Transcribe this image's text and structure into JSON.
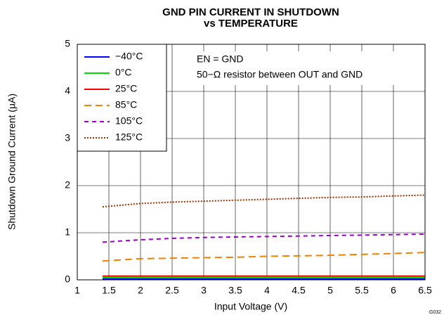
{
  "chart_data": {
    "type": "line",
    "title": "GND PIN CURRENT IN SHUTDOWN",
    "subtitle": "vs TEMPERATURE",
    "x_label": "Input Voltage (V)",
    "y_label": "Shutdown Ground Current (µA)",
    "annotations": [
      "EN = GND",
      "50−Ω resistor between OUT and GND"
    ],
    "figure_id": "G032",
    "x": [
      1.4,
      2,
      2.5,
      3,
      3.5,
      4,
      4.5,
      5,
      5.5,
      6,
      6.5
    ],
    "series": [
      {
        "name": "−40°C",
        "color": "#0000ff",
        "dash": "solid",
        "values": [
          0.02,
          0.02,
          0.02,
          0.02,
          0.02,
          0.02,
          0.02,
          0.02,
          0.02,
          0.02,
          0.02
        ]
      },
      {
        "name": "0°C",
        "color": "#00e000",
        "dash": "solid",
        "values": [
          0.05,
          0.05,
          0.05,
          0.05,
          0.05,
          0.05,
          0.05,
          0.05,
          0.05,
          0.05,
          0.05
        ]
      },
      {
        "name": "25°C",
        "color": "#ff0000",
        "dash": "solid",
        "values": [
          0.08,
          0.08,
          0.08,
          0.08,
          0.08,
          0.08,
          0.08,
          0.08,
          0.08,
          0.08,
          0.08
        ]
      },
      {
        "name": "85°C",
        "color": "#f08000",
        "dash": "dashed",
        "values": [
          0.4,
          0.45,
          0.46,
          0.47,
          0.48,
          0.5,
          0.51,
          0.52,
          0.54,
          0.56,
          0.58
        ]
      },
      {
        "name": "105°C",
        "color": "#9900cc",
        "dash": "dashed-short",
        "values": [
          0.8,
          0.85,
          0.88,
          0.9,
          0.91,
          0.92,
          0.93,
          0.94,
          0.95,
          0.96,
          0.97
        ]
      },
      {
        "name": "125°C",
        "color": "#993300",
        "dash": "dotted",
        "values": [
          1.55,
          1.62,
          1.65,
          1.67,
          1.69,
          1.71,
          1.73,
          1.75,
          1.76,
          1.78,
          1.8
        ]
      }
    ],
    "xlim": [
      1,
      6.5
    ],
    "xticks": [
      1,
      1.5,
      2,
      2.5,
      3,
      3.5,
      4,
      4.5,
      5,
      5.5,
      6,
      6.5
    ],
    "ylim": [
      0,
      5
    ],
    "yticks": [
      0,
      1,
      2,
      3,
      4,
      5
    ],
    "grid": true,
    "legend": "top-left"
  }
}
